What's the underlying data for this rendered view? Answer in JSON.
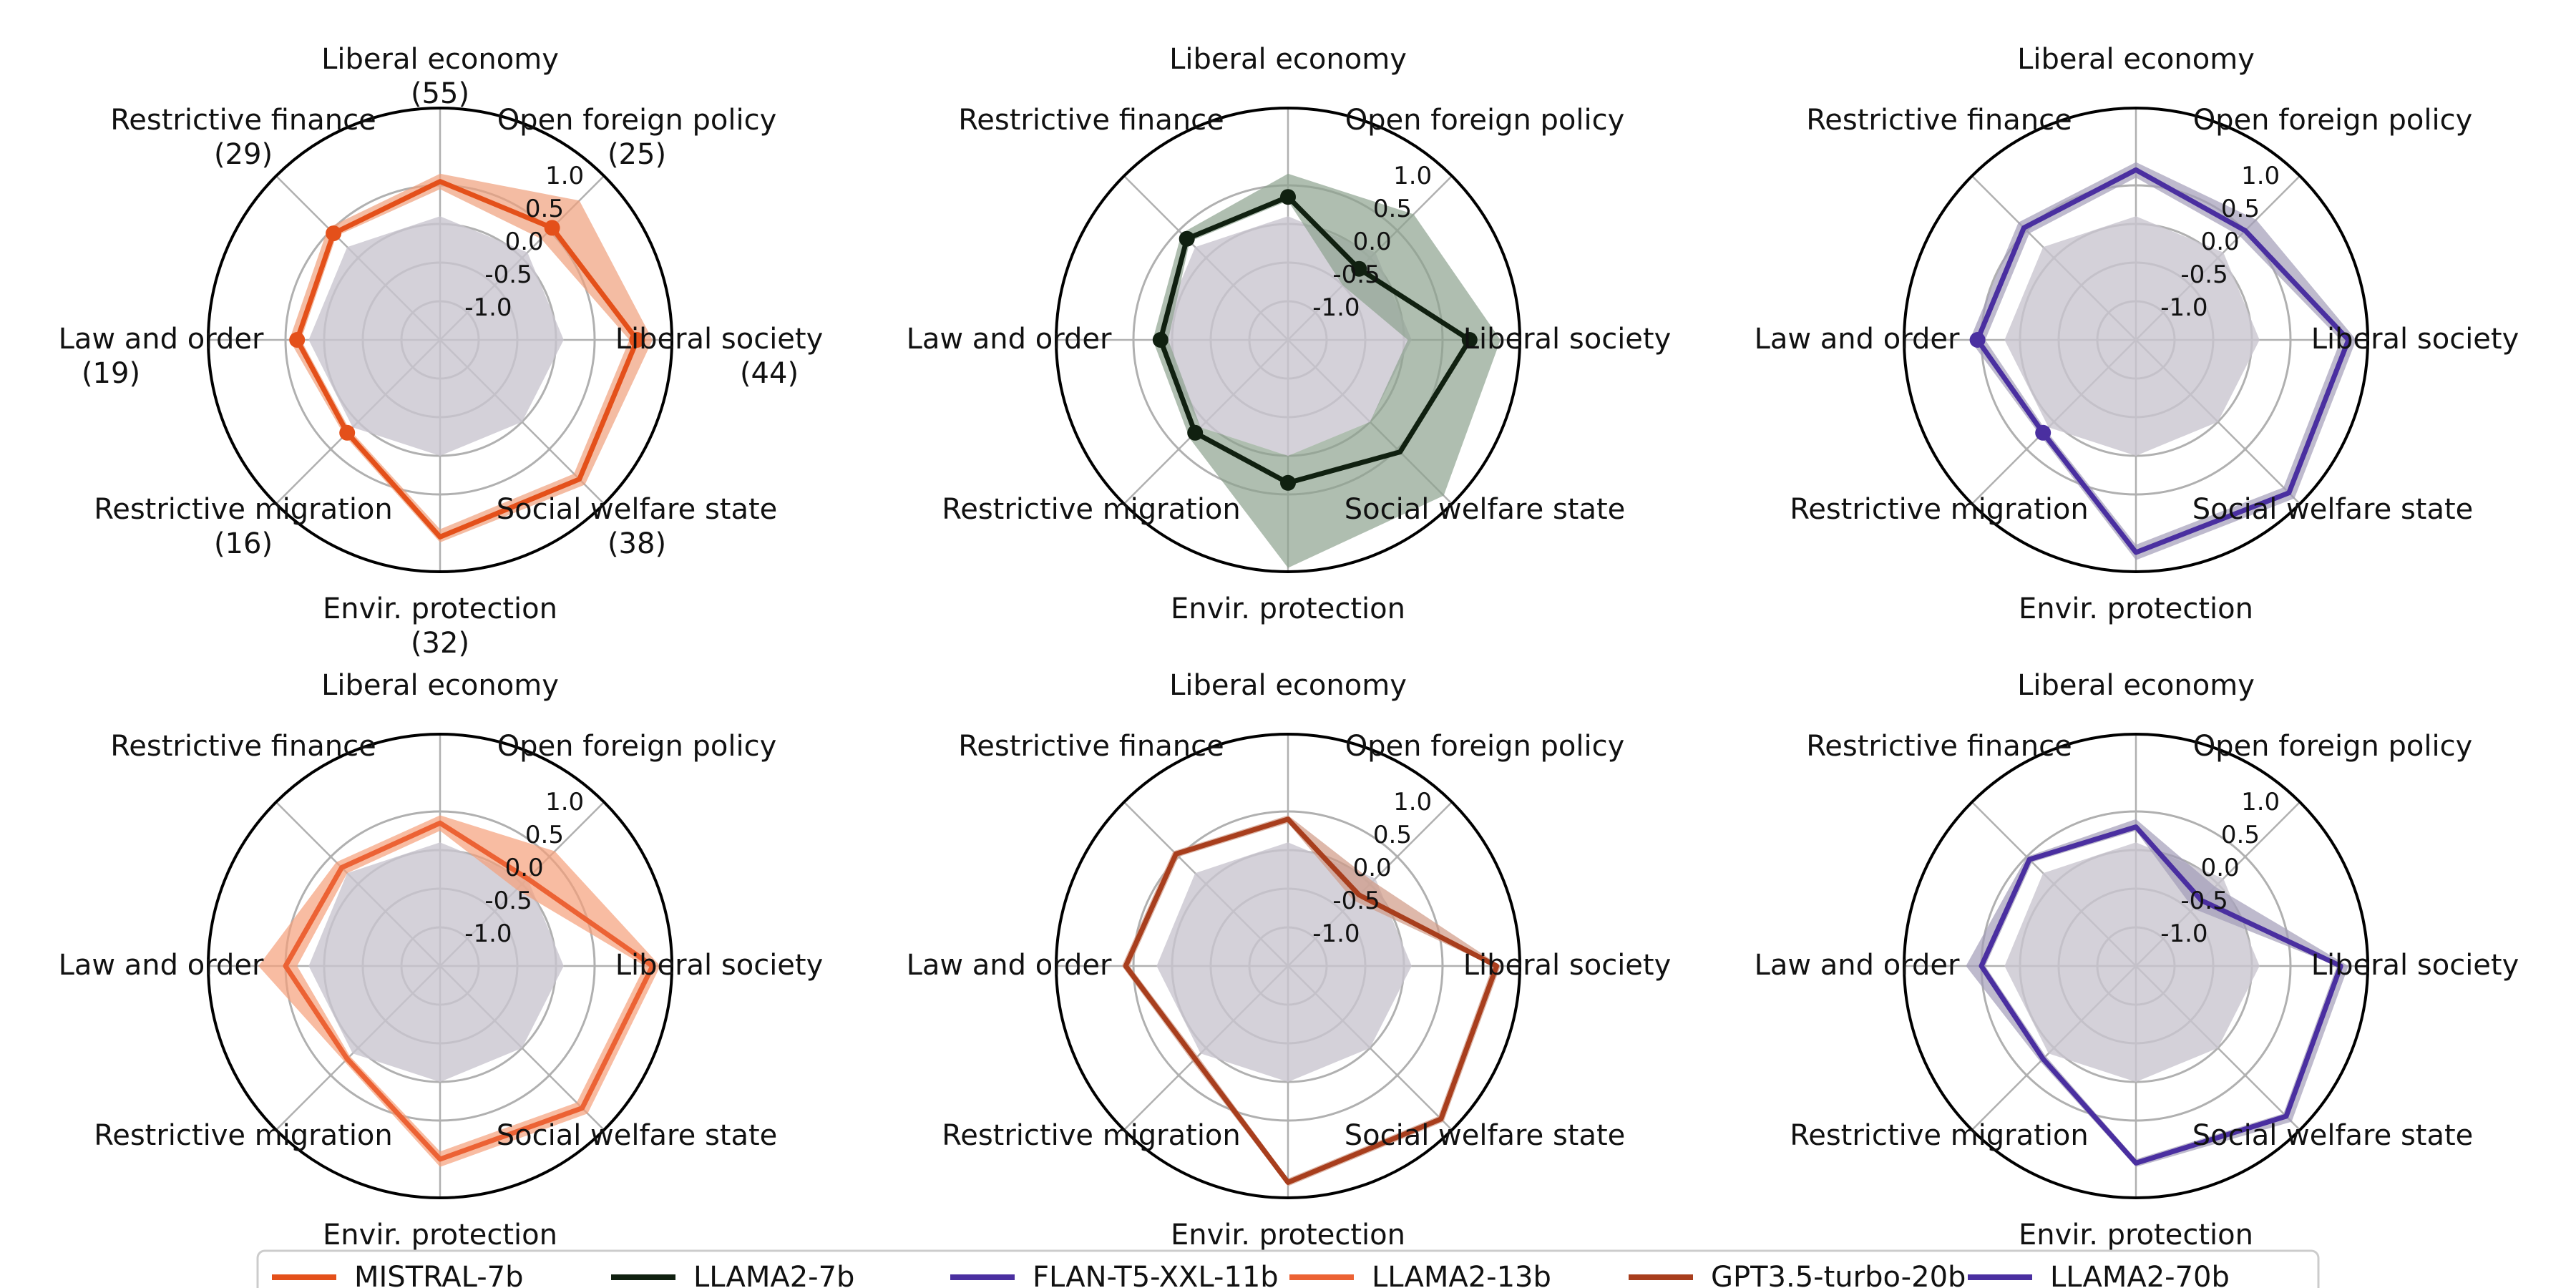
{
  "chart_data": {
    "type": "radar",
    "axes": [
      "Liberal economy",
      "Open foreign policy",
      "Liberal society",
      "Social welfare state",
      "Envir. protection",
      "Restrictive migration",
      "Law and order",
      "Restrictive finance"
    ],
    "axes_counts": [
      "(55)",
      "(25)",
      "(44)",
      "(38)",
      "(32)",
      "(16)",
      "(19)",
      "(29)"
    ],
    "radial_ticks": [
      "-1.0",
      "-0.5",
      "0.0",
      "0.5",
      "1.0"
    ],
    "rlim": [
      -1.5,
      1.5
    ],
    "grid": true,
    "legend_placement": "bottom-center",
    "baseline": [
      0.1,
      0.1,
      0.1,
      0.0,
      0.0,
      0.1,
      0.2,
      0.2
    ],
    "baseline_color": "#c9c6cf",
    "panels": [
      {
        "model": "MISTRAL-7b",
        "color": "#e4501a",
        "band_color": "#f0a07c",
        "show_counts": true,
        "values": [
          0.55,
          0.55,
          1.05,
          1.05,
          1.05,
          0.2,
          0.35,
          0.45
        ],
        "lower": [
          0.45,
          0.35,
          0.95,
          0.95,
          0.95,
          0.15,
          0.3,
          0.4
        ],
        "upper": [
          0.65,
          1.05,
          1.25,
          1.15,
          1.12,
          0.25,
          0.45,
          0.55
        ],
        "markers": [
          1,
          2,
          5,
          6,
          7
        ]
      },
      {
        "model": "LLAMA2-7b",
        "color": "#102010",
        "band_color": "#8da38f",
        "show_counts": false,
        "values": [
          0.35,
          -0.2,
          0.85,
          0.55,
          0.35,
          0.2,
          0.15,
          0.35
        ],
        "lower": [
          0.3,
          -0.5,
          0.05,
          0.0,
          0.0,
          0.1,
          0.05,
          0.3
        ],
        "upper": [
          0.65,
          0.8,
          1.25,
          1.35,
          1.45,
          0.3,
          0.25,
          0.45
        ],
        "markers": [
          0,
          1,
          2,
          4,
          5,
          6,
          7
        ]
      },
      {
        "model": "FLAN-T5-XXL-11b",
        "color": "#4a2fa0",
        "band_color": "#a39db8",
        "show_counts": false,
        "values": [
          0.7,
          0.5,
          1.25,
          1.3,
          1.25,
          0.2,
          0.55,
          0.55
        ],
        "lower": [
          0.6,
          0.4,
          1.15,
          1.2,
          1.15,
          0.15,
          0.45,
          0.45
        ],
        "upper": [
          0.8,
          0.7,
          1.35,
          1.4,
          1.35,
          0.25,
          0.65,
          0.65
        ],
        "markers": [
          5,
          6
        ]
      },
      {
        "model": "LLAMA2-13b",
        "color": "#ec6234",
        "band_color": "#f5a07a",
        "show_counts": false,
        "values": [
          0.35,
          0.1,
          1.25,
          1.1,
          1.0,
          0.2,
          0.5,
          0.3
        ],
        "lower": [
          0.25,
          -0.1,
          1.15,
          1.0,
          0.9,
          0.15,
          0.35,
          0.2
        ],
        "upper": [
          0.45,
          0.6,
          1.35,
          1.2,
          1.1,
          0.25,
          0.85,
          0.4
        ],
        "markers": []
      },
      {
        "model": "GPT3.5-turbo-20b",
        "color": "#a83e1d",
        "band_color": "#d09a86",
        "show_counts": false,
        "values": [
          0.4,
          -0.2,
          1.2,
          1.3,
          1.3,
          0.2,
          0.6,
          0.55
        ],
        "lower": [
          0.35,
          -0.3,
          1.15,
          1.25,
          1.25,
          0.15,
          0.55,
          0.5
        ],
        "upper": [
          0.45,
          0.05,
          1.25,
          1.35,
          1.35,
          0.25,
          0.65,
          0.6
        ],
        "markers": []
      },
      {
        "model": "LLAMA2-70b",
        "color": "#4a2fa0",
        "band_color": "#a39db8",
        "show_counts": false,
        "values": [
          0.3,
          -0.3,
          1.15,
          1.25,
          1.05,
          0.2,
          0.5,
          0.45
        ],
        "lower": [
          0.25,
          -0.45,
          1.1,
          1.2,
          1.0,
          0.15,
          0.45,
          0.4
        ],
        "upper": [
          0.4,
          -0.05,
          1.25,
          1.35,
          1.1,
          0.25,
          0.7,
          0.5
        ],
        "markers": []
      }
    ],
    "legend": [
      {
        "name": "MISTRAL-7b",
        "color": "#e4501a"
      },
      {
        "name": "LLAMA2-7b",
        "color": "#102010"
      },
      {
        "name": "FLAN-T5-XXL-11b",
        "color": "#4a2fa0"
      },
      {
        "name": "LLAMA2-13b",
        "color": "#ec6234"
      },
      {
        "name": "GPT3.5-turbo-20b",
        "color": "#a83e1d"
      },
      {
        "name": "LLAMA2-70b",
        "color": "#4a2fa0"
      }
    ]
  }
}
